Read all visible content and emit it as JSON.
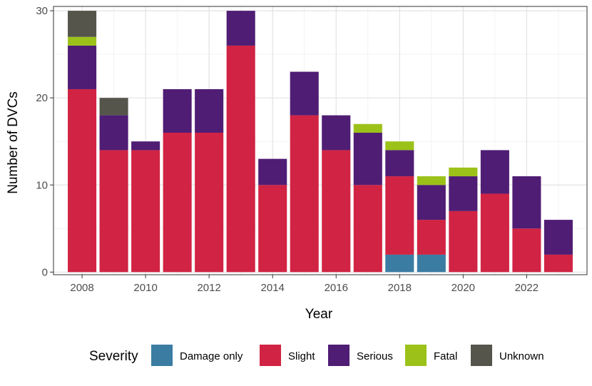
{
  "chart_data": {
    "type": "bar",
    "stacked": true,
    "xlabel": "Year",
    "ylabel": "Number of DVCs",
    "categories": [
      2008,
      2009,
      2010,
      2011,
      2012,
      2013,
      2014,
      2015,
      2016,
      2017,
      2018,
      2019,
      2020,
      2021,
      2022,
      2023
    ],
    "x_ticks": [
      "2008",
      "2010",
      "2012",
      "2014",
      "2016",
      "2018",
      "2020",
      "2022"
    ],
    "x_tick_values": [
      2008,
      2010,
      2012,
      2014,
      2016,
      2018,
      2020,
      2022
    ],
    "y_ticks": [
      "0",
      "10",
      "20",
      "30"
    ],
    "y_tick_values": [
      0,
      10,
      20,
      30
    ],
    "ylim": [
      -0.3,
      30.5
    ],
    "xlim": [
      2007.1,
      2023.9
    ],
    "grid": true,
    "legend": {
      "title": "Severity",
      "position": "bottom"
    },
    "series": [
      {
        "name": "Damage only",
        "color": "#3b7ca3",
        "values": [
          0,
          0,
          0,
          0,
          0,
          0,
          0,
          0,
          0,
          0,
          2,
          2,
          0,
          0,
          0,
          0
        ]
      },
      {
        "name": "Slight",
        "color": "#d12343",
        "values": [
          21,
          14,
          14,
          16,
          16,
          26,
          10,
          18,
          14,
          10,
          9,
          4,
          7,
          9,
          5,
          2
        ]
      },
      {
        "name": "Serious",
        "color": "#4f1d74",
        "values": [
          5,
          4,
          1,
          5,
          5,
          4,
          3,
          5,
          4,
          6,
          3,
          4,
          4,
          5,
          6,
          4
        ]
      },
      {
        "name": "Fatal",
        "color": "#9cc21a",
        "values": [
          1,
          0,
          0,
          0,
          0,
          0,
          0,
          0,
          0,
          1,
          1,
          1,
          1,
          0,
          0,
          0
        ]
      },
      {
        "name": "Unknown",
        "color": "#55554b",
        "values": [
          3,
          2,
          0,
          0,
          0,
          0,
          0,
          0,
          0,
          0,
          0,
          0,
          0,
          0,
          0,
          0
        ]
      }
    ]
  }
}
